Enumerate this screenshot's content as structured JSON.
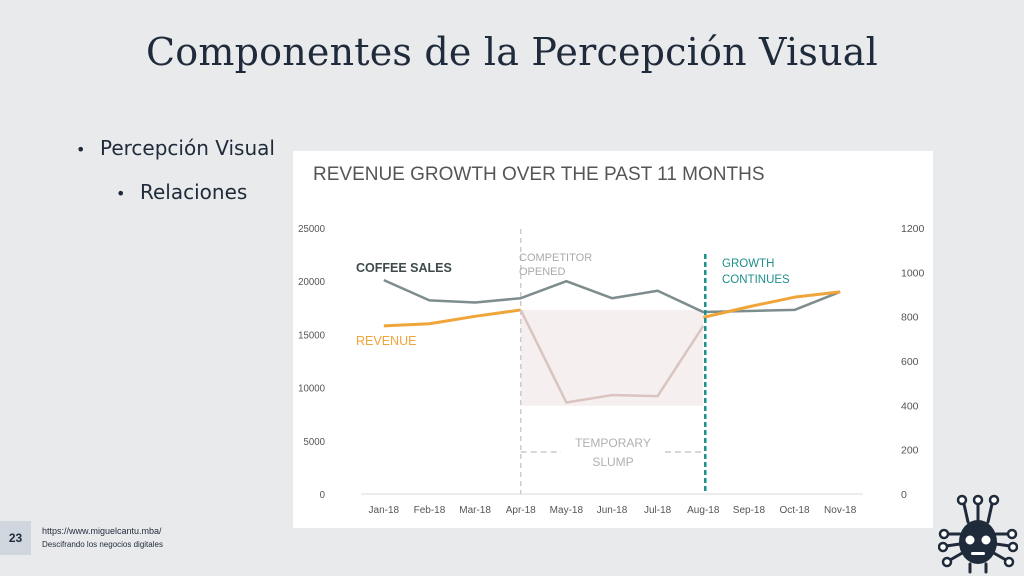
{
  "slide": {
    "title": "Componentes de la Percepción Visual",
    "bullets": [
      {
        "text": "Percepción Visual",
        "level": 1
      },
      {
        "text": "Relaciones",
        "level": 2
      }
    ],
    "page_number": "23",
    "footer_url": "https://www.miguelcantu.mba/",
    "footer_tagline": "Descifrando los negocios digitales"
  },
  "colors": {
    "coffee": "#7d8c8c",
    "revenue": "#f0a53a",
    "slump": "#d9c4c0",
    "growth_marker": "#1f8f8a",
    "axis_text": "#555555"
  },
  "chart_data": {
    "type": "line",
    "title": "REVENUE GROWTH OVER THE PAST 11 MONTHS",
    "categories": [
      "Jan-18",
      "Feb-18",
      "Mar-18",
      "Apr-18",
      "May-18",
      "Jun-18",
      "Jul-18",
      "Aug-18",
      "Sep-18",
      "Oct-18",
      "Nov-18"
    ],
    "y_left": {
      "ylim": [
        0,
        25000
      ],
      "ticks": [
        "0",
        "5000",
        "10000",
        "15000",
        "20000",
        "25000"
      ]
    },
    "y_right": {
      "ylim": [
        0,
        1200
      ],
      "ticks": [
        "0",
        "200",
        "400",
        "600",
        "800",
        "1000",
        "1200"
      ]
    },
    "series": [
      {
        "name": "COFFEE SALES",
        "axis": "left",
        "values": [
          20100,
          18200,
          18000,
          18400,
          20000,
          18400,
          19100,
          17100,
          17200,
          17300,
          19000
        ]
      },
      {
        "name": "REVENUE",
        "axis": "left",
        "values": [
          15800,
          16000,
          16700,
          17300,
          null,
          null,
          null,
          16600,
          17600,
          18500,
          19000
        ]
      },
      {
        "name": "",
        "axis": "left",
        "role": "slump",
        "values": [
          null,
          null,
          null,
          17300,
          8600,
          9300,
          9200,
          15800,
          null,
          null,
          null
        ]
      }
    ],
    "annotations": {
      "competitor": "COMPETITOR OPENED",
      "growth": "GROWTH CONTINUES",
      "slump": "TEMPORARY SLUMP"
    }
  }
}
